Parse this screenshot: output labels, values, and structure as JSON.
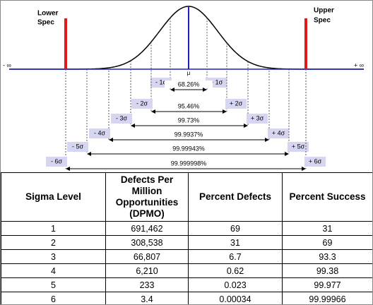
{
  "diagram": {
    "lower_spec": [
      "Lower",
      "Spec"
    ],
    "upper_spec": [
      "Upper",
      "Spec"
    ],
    "neg_inf": "- ∞",
    "pos_inf": "+ ∞",
    "mu": "μ",
    "intervals": [
      {
        "minus": "- 1σ",
        "plus": "+ 1σ",
        "coverage": "68.26%"
      },
      {
        "minus": "- 2σ",
        "plus": "+ 2σ",
        "coverage": "95.46%"
      },
      {
        "minus": "- 3σ",
        "plus": "+ 3σ",
        "coverage": "99.73%"
      },
      {
        "minus": "- 4σ",
        "plus": "+ 4σ",
        "coverage": "99.9937%"
      },
      {
        "minus": "- 5σ",
        "plus": "+ 5σ",
        "coverage": "99.99943%"
      },
      {
        "minus": "- 6σ",
        "plus": "+ 6σ",
        "coverage": "99.999998%"
      }
    ]
  },
  "table": {
    "columns": [
      "Sigma Level",
      "Defects Per Million Opportunities (DPMO)",
      "Percent Defects",
      "Percent Success"
    ],
    "rows": [
      [
        "1",
        "691,462",
        "69",
        "31"
      ],
      [
        "2",
        "308,538",
        "31",
        "69"
      ],
      [
        "3",
        "66,807",
        "6.7",
        "93.3"
      ],
      [
        "4",
        "6,210",
        "0.62",
        "99.38"
      ],
      [
        "5",
        "233",
        "0.023",
        "99.977"
      ],
      [
        "6",
        "3.4",
        "0.00034",
        "99.99966"
      ]
    ]
  }
}
